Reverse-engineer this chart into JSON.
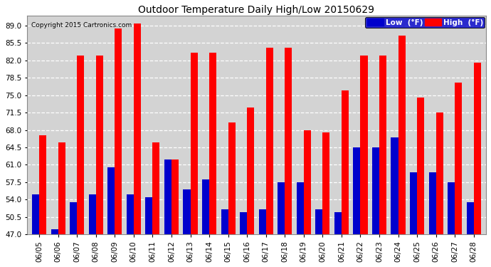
{
  "title": "Outdoor Temperature Daily High/Low 20150629",
  "copyright": "Copyright 2015 Cartronics.com",
  "dates": [
    "06/05",
    "06/06",
    "06/07",
    "06/08",
    "06/09",
    "06/10",
    "06/11",
    "06/12",
    "06/13",
    "06/14",
    "06/15",
    "06/16",
    "06/17",
    "06/18",
    "06/19",
    "06/20",
    "06/21",
    "06/22",
    "06/23",
    "06/24",
    "06/25",
    "06/26",
    "06/27",
    "06/28"
  ],
  "highs": [
    67.0,
    65.5,
    83.0,
    83.0,
    88.5,
    89.5,
    65.5,
    62.0,
    83.5,
    83.5,
    69.5,
    72.5,
    84.5,
    84.5,
    68.0,
    67.5,
    76.0,
    83.0,
    83.0,
    87.0,
    74.5,
    71.5,
    77.5,
    81.5
  ],
  "lows": [
    55.0,
    48.0,
    53.5,
    55.0,
    60.5,
    55.0,
    54.5,
    62.0,
    56.0,
    58.0,
    52.0,
    51.5,
    52.0,
    57.5,
    57.5,
    52.0,
    51.5,
    64.5,
    64.5,
    66.5,
    59.5,
    59.5,
    57.5,
    53.5
  ],
  "high_color": "#ff0000",
  "low_color": "#0000cc",
  "bg_color": "#ffffff",
  "plot_bg_color": "#d3d3d3",
  "grid_color": "#ffffff",
  "ylim_min": 47.0,
  "ylim_max": 91.0,
  "yticks": [
    47.0,
    50.5,
    54.0,
    57.5,
    61.0,
    64.5,
    68.0,
    71.5,
    75.0,
    78.5,
    82.0,
    85.5,
    89.0
  ],
  "legend_low_label": "Low  (°F)",
  "legend_high_label": "High  (°F)",
  "bar_width": 0.38,
  "figsize": [
    6.9,
    3.75
  ],
  "dpi": 100
}
